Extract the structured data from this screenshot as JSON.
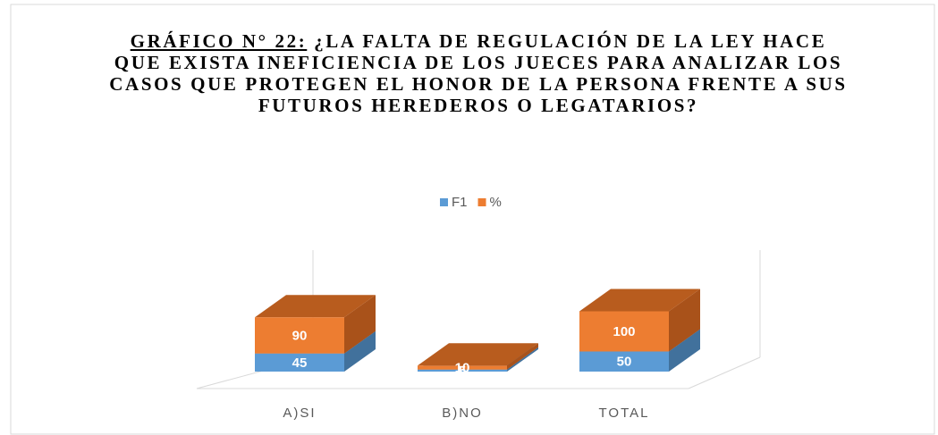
{
  "chart_data": {
    "type": "bar3d_stacked",
    "title": [
      "GRÁFICO N° 22:",
      "¿LA FALTA DE REGULACIÓN DE LA LEY HACE QUE EXISTA INEFICIENCIA DE LOS JUECES PARA ANALIZAR LOS CASOS QUE PROTEGEN EL HONOR DE LA PERSONA FRENTE A SUS FUTUROS HEREDEROS O LEGATARIOS?"
    ],
    "categories": [
      "A)SI",
      "B)NO",
      "TOTAL"
    ],
    "series": [
      {
        "name": "F1",
        "color": "#5b9bd5",
        "values": [
          45,
          5,
          50
        ]
      },
      {
        "name": "%",
        "color": "#ed7d31",
        "values": [
          90,
          10,
          100
        ]
      }
    ],
    "legend": "top"
  }
}
